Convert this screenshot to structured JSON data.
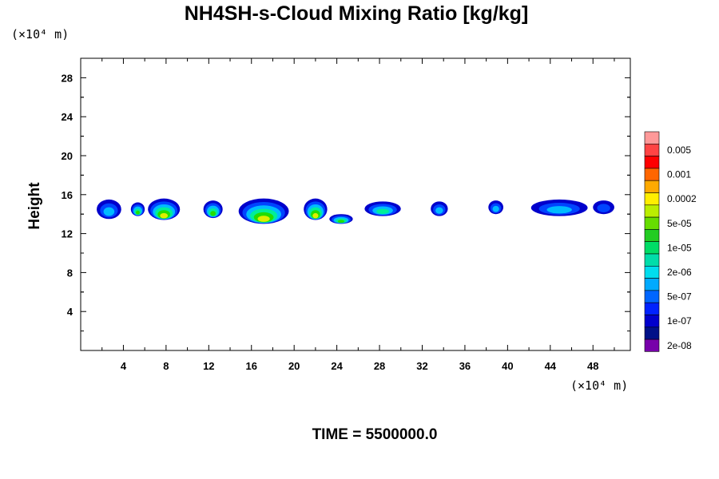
{
  "chart_data": {
    "type": "heatmap",
    "title": "NH4SH-s-Cloud Mixing Ratio [kg/kg]",
    "ylabel": "Height",
    "x_unit": "(×10⁴ m)",
    "y_unit": "(×10⁴ m)",
    "footer": "TIME = 5500000.0",
    "xlim": [
      0,
      51.5
    ],
    "ylim": [
      0,
      30
    ],
    "x_ticks": [
      4,
      8,
      12,
      16,
      20,
      24,
      28,
      32,
      36,
      40,
      44,
      48
    ],
    "y_ticks": [
      4,
      8,
      12,
      16,
      20,
      24,
      28
    ],
    "grid": false,
    "colorbar": {
      "placement": "right",
      "labels": [
        "0.005",
        "0.001",
        "0.0002",
        "5e-05",
        "1e-05",
        "2e-06",
        "5e-07",
        "1e-07",
        "2e-08"
      ],
      "colors": [
        "#ff9999",
        "#ff4444",
        "#ff0000",
        "#ff6600",
        "#ffaa00",
        "#ffee00",
        "#bbee00",
        "#66dd00",
        "#22cc22",
        "#00dd66",
        "#00ddaa",
        "#00ddee",
        "#00aaff",
        "#0066ff",
        "#0022ff",
        "#0000cc",
        "#001188",
        "#7700aa"
      ]
    },
    "clouds": [
      {
        "x": [
          1.5,
          3.8
        ],
        "y": [
          13.5,
          15.5
        ],
        "peak": "5e-07"
      },
      {
        "x": [
          4.7,
          6.0
        ],
        "y": [
          13.8,
          15.2
        ],
        "peak": "1e-05"
      },
      {
        "x": [
          6.3,
          9.3
        ],
        "y": [
          13.4,
          15.6
        ],
        "peak": "5e-05"
      },
      {
        "x": [
          11.5,
          13.3
        ],
        "y": [
          13.6,
          15.4
        ],
        "peak": "1e-05"
      },
      {
        "x": [
          14.8,
          19.5
        ],
        "y": [
          13.0,
          15.6
        ],
        "peak": "5e-05"
      },
      {
        "x": [
          20.9,
          23.1
        ],
        "y": [
          13.4,
          15.6
        ],
        "peak": "5e-05"
      },
      {
        "x": [
          23.3,
          25.5
        ],
        "y": [
          13.0,
          14.0
        ],
        "peak": "1e-05"
      },
      {
        "x": [
          26.6,
          30.0
        ],
        "y": [
          13.8,
          15.3
        ],
        "peak": "2e-06"
      },
      {
        "x": [
          32.8,
          34.4
        ],
        "y": [
          13.8,
          15.3
        ],
        "peak": "5e-07"
      },
      {
        "x": [
          38.2,
          39.6
        ],
        "y": [
          14.0,
          15.4
        ],
        "peak": "5e-07"
      },
      {
        "x": [
          42.2,
          47.5
        ],
        "y": [
          13.8,
          15.5
        ],
        "peak": "5e-07"
      },
      {
        "x": [
          48.0,
          50.0
        ],
        "y": [
          14.0,
          15.4
        ],
        "peak": "1e-07"
      }
    ]
  }
}
